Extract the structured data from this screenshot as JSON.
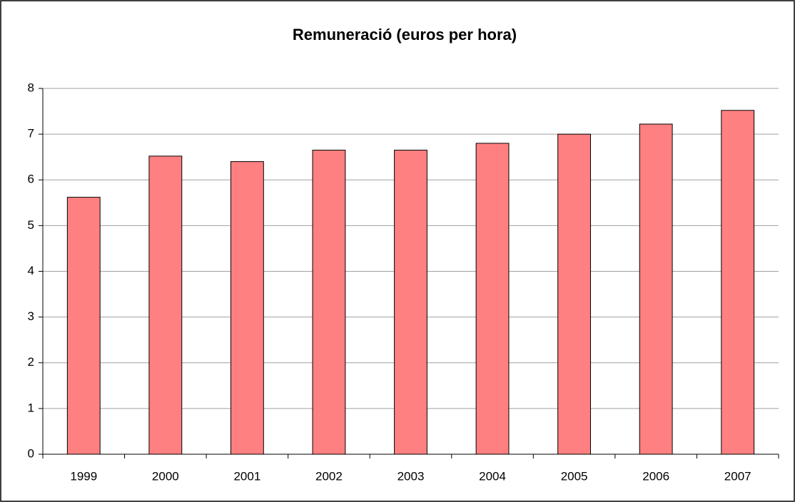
{
  "chart_data": {
    "type": "bar",
    "title": "Remuneració (euros per hora)",
    "categories": [
      "1999",
      "2000",
      "2001",
      "2002",
      "2003",
      "2004",
      "2005",
      "2006",
      "2007"
    ],
    "values": [
      5.62,
      6.52,
      6.4,
      6.65,
      6.65,
      6.8,
      7.0,
      7.22,
      7.52
    ],
    "color": "#ff8080",
    "ylim": [
      0,
      8
    ],
    "yticks": [
      0,
      1,
      2,
      3,
      4,
      5,
      6,
      7,
      8
    ],
    "grid": true
  }
}
